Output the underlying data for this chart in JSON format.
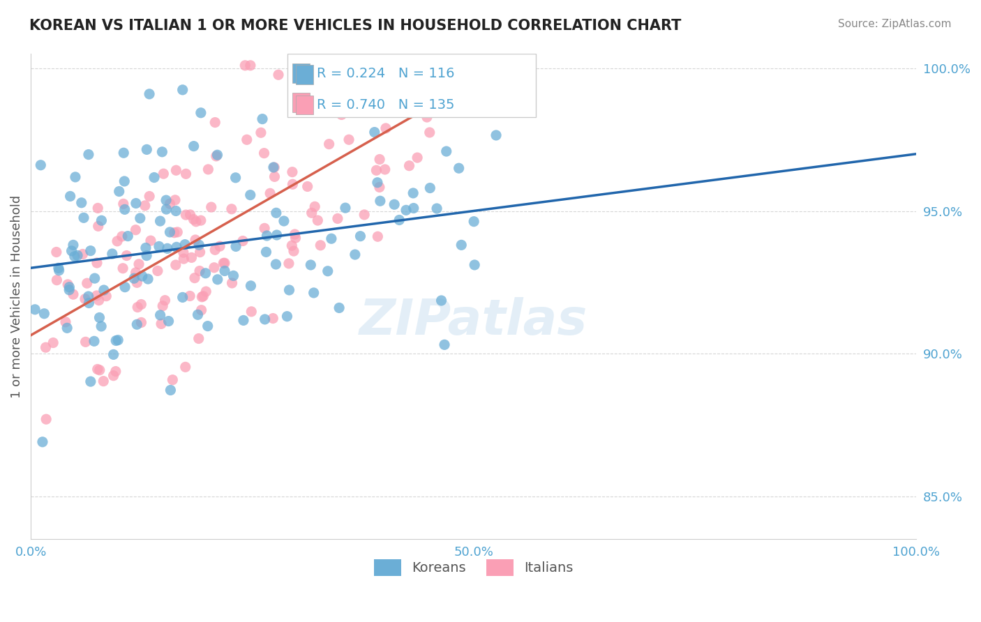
{
  "title": "KOREAN VS ITALIAN 1 OR MORE VEHICLES IN HOUSEHOLD CORRELATION CHART",
  "source": "Source: ZipAtlas.com",
  "ylabel": "1 or more Vehicles in Household",
  "xlabel": "",
  "xlim": [
    0.0,
    1.0
  ],
  "ylim": [
    0.835,
    1.005
  ],
  "yticks": [
    0.85,
    0.9,
    0.95,
    1.0
  ],
  "ytick_labels": [
    "85.0%",
    "90.0%",
    "95.0%",
    "100.0%"
  ],
  "xticks": [
    0.0,
    0.1,
    0.2,
    0.3,
    0.4,
    0.5,
    0.6,
    0.7,
    0.8,
    0.9,
    1.0
  ],
  "xtick_labels": [
    "0.0%",
    "",
    "",
    "",
    "",
    "50.0%",
    "",
    "",
    "",
    "",
    "100.0%"
  ],
  "korean_color": "#6baed6",
  "italian_color": "#fa9fb5",
  "korean_R": 0.224,
  "korean_N": 116,
  "italian_R": 0.74,
  "italian_N": 135,
  "trend_blue": "#2166ac",
  "trend_pink": "#d6604d",
  "watermark": "ZIPatlas",
  "legend_labels": [
    "Koreans",
    "Italians"
  ],
  "background_color": "#ffffff",
  "grid_color": "#cccccc",
  "title_color": "#333333",
  "axis_label_color": "#555555",
  "ytick_color": "#4fa3d1",
  "legend_R_color": "#4fa3d1",
  "legend_N_color": "#333333"
}
